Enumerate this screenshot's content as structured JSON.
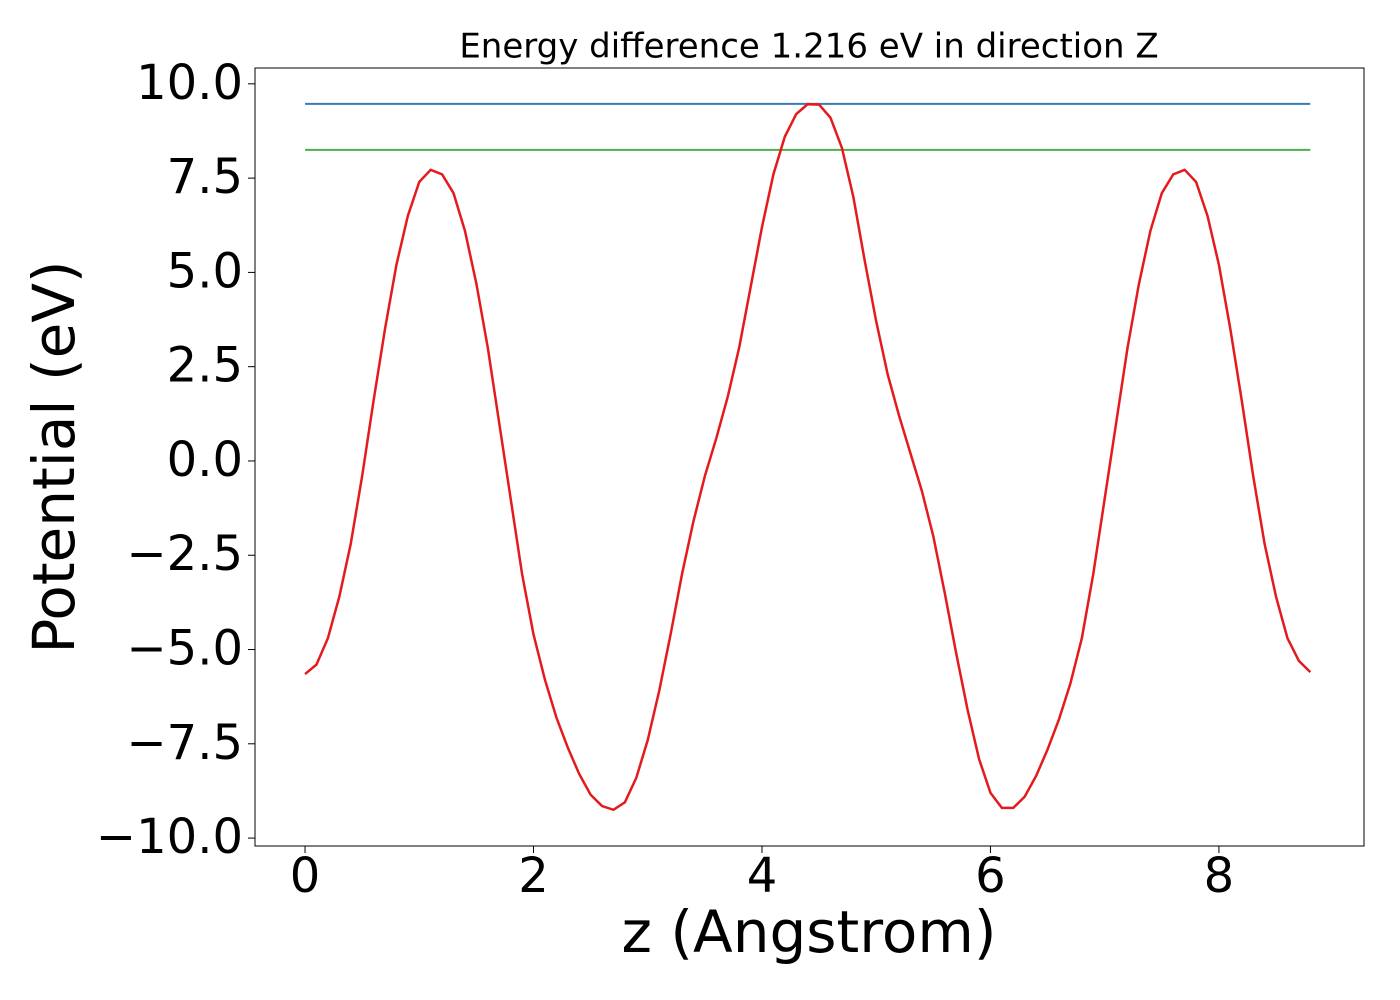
{
  "chart_data": {
    "type": "line",
    "title": "Energy difference 1.216 eV in direction Z",
    "xlabel": "z (Angstrom)",
    "ylabel": "Potential (eV)",
    "xlim": [
      -0.438,
      9.27
    ],
    "ylim": [
      -10.21,
      10.42
    ],
    "xticks": [
      0,
      2,
      4,
      6,
      8
    ],
    "yticks": [
      {
        "value": -10,
        "label": "−10.0"
      },
      {
        "value": -7.5,
        "label": "−7.5"
      },
      {
        "value": -5,
        "label": "−5.0"
      },
      {
        "value": -2.5,
        "label": "−2.5"
      },
      {
        "value": 0,
        "label": "0.0"
      },
      {
        "value": 2.5,
        "label": "2.5"
      },
      {
        "value": 5,
        "label": "5.0"
      },
      {
        "value": 7.5,
        "label": "7.5"
      },
      {
        "value": 10,
        "label": "10.0"
      }
    ],
    "series": [
      {
        "color": "#377eb8",
        "x": [
          0,
          8.8
        ],
        "values": [
          9.47,
          9.47
        ]
      },
      {
        "color": "#4daf4a",
        "x": [
          0,
          8.8
        ],
        "values": [
          8.25,
          8.25
        ]
      },
      {
        "color": "#e41a1c",
        "x": [
          0,
          0.1,
          0.2,
          0.3,
          0.4,
          0.5,
          0.6,
          0.7,
          0.8,
          0.9,
          1.0,
          1.1,
          1.2,
          1.3,
          1.4,
          1.5,
          1.6,
          1.7,
          1.8,
          1.9,
          2.0,
          2.1,
          2.2,
          2.3,
          2.4,
          2.5,
          2.6,
          2.7,
          2.8,
          2.9,
          3.0,
          3.1,
          3.2,
          3.3,
          3.4,
          3.5,
          3.6,
          3.7,
          3.8,
          3.9,
          4.0,
          4.1,
          4.2,
          4.3,
          4.4,
          4.5,
          4.6,
          4.7,
          4.8,
          4.9,
          5.0,
          5.1,
          5.2,
          5.3,
          5.4,
          5.5,
          5.6,
          5.7,
          5.8,
          5.9,
          6.0,
          6.1,
          6.2,
          6.3,
          6.4,
          6.5,
          6.6,
          6.7,
          6.8,
          6.9,
          7.0,
          7.1,
          7.2,
          7.3,
          7.4,
          7.5,
          7.6,
          7.7,
          7.8,
          7.9,
          8.0,
          8.1,
          8.2,
          8.3,
          8.4,
          8.5,
          8.6,
          8.7,
          8.8
        ],
        "values": [
          -5.65,
          -5.4,
          -4.7,
          -3.6,
          -2.2,
          -0.4,
          1.6,
          3.5,
          5.2,
          6.5,
          7.4,
          7.72,
          7.6,
          7.1,
          6.1,
          4.7,
          3.0,
          1.0,
          -1.0,
          -3.0,
          -4.6,
          -5.8,
          -6.8,
          -7.6,
          -8.3,
          -8.85,
          -9.15,
          -9.25,
          -9.05,
          -8.4,
          -7.4,
          -6.1,
          -4.6,
          -3.0,
          -1.6,
          -0.4,
          0.6,
          1.7,
          3.0,
          4.6,
          6.2,
          7.6,
          8.6,
          9.2,
          9.46,
          9.45,
          9.1,
          8.3,
          7.0,
          5.3,
          3.7,
          2.3,
          1.2,
          0.2,
          -0.8,
          -2.0,
          -3.5,
          -5.1,
          -6.6,
          -7.9,
          -8.8,
          -9.2,
          -9.2,
          -8.9,
          -8.35,
          -7.65,
          -6.85,
          -5.9,
          -4.7,
          -3.0,
          -1.0,
          1.0,
          3.0,
          4.7,
          6.1,
          7.1,
          7.6,
          7.72,
          7.4,
          6.5,
          5.2,
          3.5,
          1.6,
          -0.4,
          -2.2,
          -3.6,
          -4.7,
          -5.3,
          -5.6
        ]
      }
    ]
  }
}
